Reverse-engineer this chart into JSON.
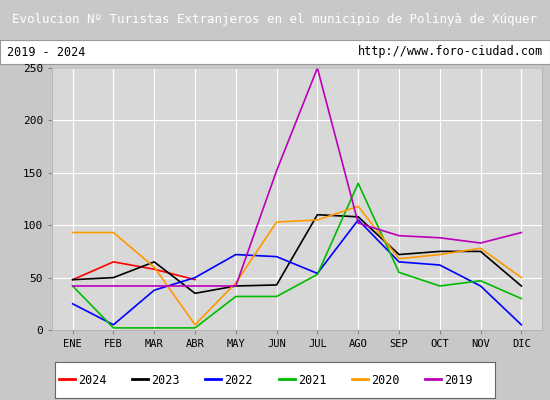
{
  "title": "Evolucion Nº Turistas Extranjeros en el municipio de Polinyà de Xúquer",
  "subtitle_left": "2019 - 2024",
  "subtitle_right": "http://www.foro-ciudad.com",
  "months": [
    "ENE",
    "FEB",
    "MAR",
    "ABR",
    "MAY",
    "JUN",
    "JUL",
    "AGO",
    "SEP",
    "OCT",
    "NOV",
    "DIC"
  ],
  "series": {
    "2024": {
      "color": "#ff0000",
      "values": [
        48,
        65,
        58,
        48,
        null,
        null,
        null,
        null,
        null,
        null,
        null,
        null
      ]
    },
    "2023": {
      "color": "#000000",
      "values": [
        48,
        50,
        65,
        35,
        42,
        43,
        110,
        108,
        72,
        75,
        75,
        42
      ]
    },
    "2022": {
      "color": "#0000ff",
      "values": [
        25,
        5,
        38,
        50,
        72,
        70,
        54,
        105,
        65,
        62,
        42,
        5
      ]
    },
    "2021": {
      "color": "#00bb00",
      "values": [
        42,
        2,
        2,
        2,
        32,
        32,
        53,
        140,
        55,
        42,
        47,
        30
      ]
    },
    "2020": {
      "color": "#ff9900",
      "values": [
        93,
        93,
        60,
        5,
        45,
        103,
        105,
        118,
        68,
        72,
        78,
        50
      ]
    },
    "2019": {
      "color": "#bb00bb",
      "values": [
        42,
        42,
        42,
        42,
        42,
        152,
        250,
        102,
        90,
        88,
        83,
        93
      ]
    }
  },
  "ylim": [
    0,
    250
  ],
  "yticks": [
    0,
    50,
    100,
    150,
    200,
    250
  ],
  "title_bg_color": "#4169b0",
  "title_text_color": "#ffffff",
  "subtitle_bg_color": "#ffffff",
  "subtitle_border_color": "#999999",
  "plot_bg_color": "#d8d8d8",
  "fig_bg_color": "#c8c8c8",
  "grid_color": "#ffffff",
  "legend_bg_color": "#ffffff",
  "legend_border_color": "#666666"
}
